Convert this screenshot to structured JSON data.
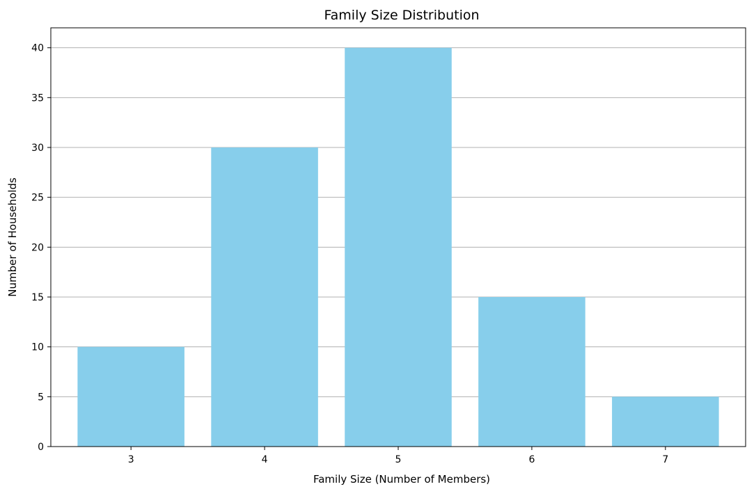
{
  "chart_data": {
    "type": "bar",
    "title": "Family Size Distribution",
    "xlabel": "Family Size (Number of Members)",
    "ylabel": "Number of Households",
    "categories": [
      "3",
      "4",
      "5",
      "6",
      "7"
    ],
    "values": [
      10,
      30,
      40,
      15,
      5
    ],
    "ylim": [
      0,
      42
    ],
    "yticks": [
      "0",
      "5",
      "10",
      "15",
      "20",
      "25",
      "30",
      "35",
      "40"
    ],
    "grid": "y-axis",
    "legend": "none",
    "colors": {
      "bar": "#87ceeb",
      "grid": "#b0b0b0",
      "axis": "#000000"
    }
  }
}
